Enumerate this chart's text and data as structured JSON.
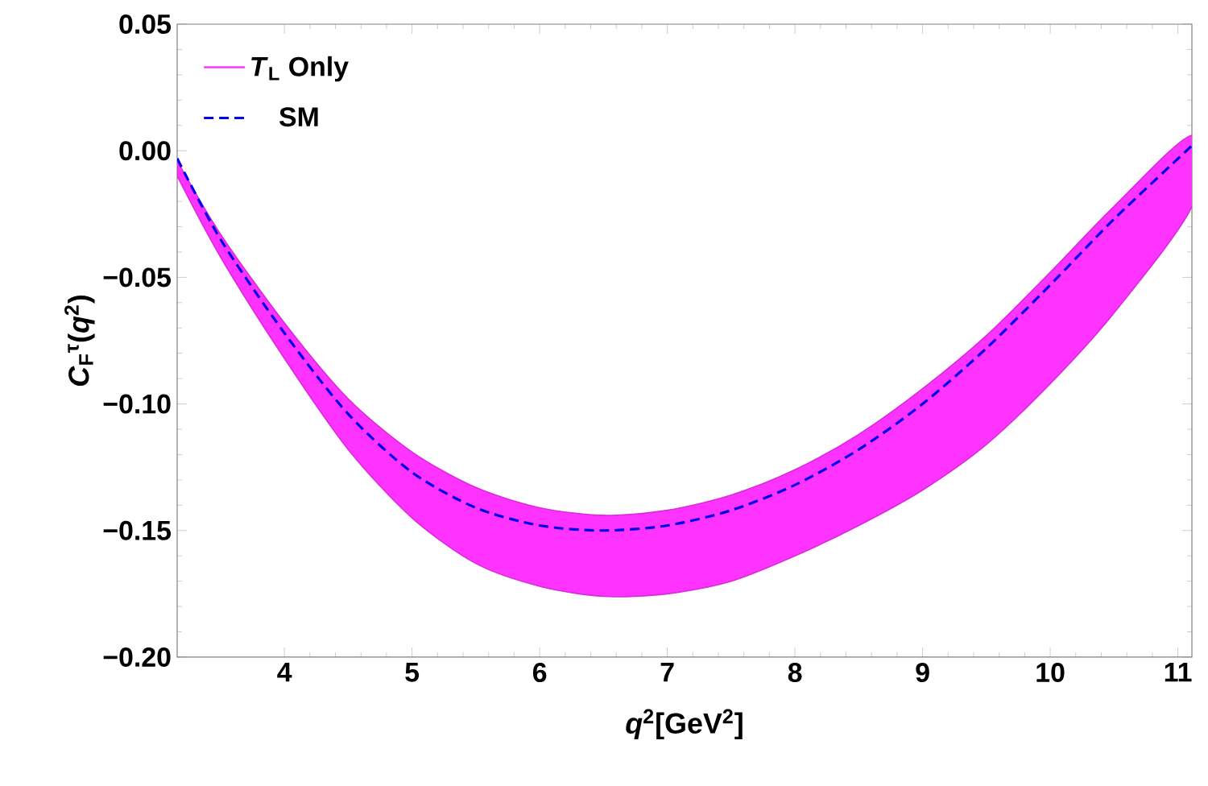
{
  "chart_data": {
    "type": "line",
    "xlabel": "*q*$^{2}$[GeV$^{2}$]",
    "ylabel": "*C*$_{F}$$^{τ}$(*q*$^{2}$)",
    "x": [
      3.16,
      3.5,
      4,
      4.5,
      5,
      5.5,
      6,
      6.5,
      7,
      7.5,
      8,
      8.5,
      9,
      9.5,
      10,
      10.5,
      11.11
    ],
    "series": [
      {
        "name": "*T*$_{L}$ Only",
        "type": "area",
        "color": "#ff33ff",
        "values": [
          null,
          null,
          null,
          null,
          null,
          null,
          null,
          null,
          null,
          null,
          null,
          null,
          null,
          null,
          null,
          null,
          null
        ],
        "upper": [
          -0.004,
          -0.033,
          -0.068,
          -0.098,
          -0.119,
          -0.133,
          -0.141,
          -0.144,
          -0.142,
          -0.136,
          -0.126,
          -0.112,
          -0.094,
          -0.073,
          -0.048,
          -0.022,
          0.006
        ],
        "lower": [
          -0.01,
          -0.042,
          -0.082,
          -0.118,
          -0.145,
          -0.163,
          -0.172,
          -0.176,
          -0.175,
          -0.17,
          -0.16,
          -0.148,
          -0.134,
          -0.116,
          -0.092,
          -0.064,
          -0.022
        ]
      },
      {
        "name": "SM",
        "color": "#0000ee",
        "line_style": "dashed",
        "values": [
          -0.003,
          -0.035,
          -0.072,
          -0.104,
          -0.127,
          -0.141,
          -0.148,
          -0.15,
          -0.148,
          -0.142,
          -0.132,
          -0.118,
          -0.1,
          -0.078,
          -0.053,
          -0.027,
          0.002
        ]
      }
    ],
    "xlim": [
      3.16,
      11.11
    ],
    "ylim": [
      -0.2,
      0.05
    ],
    "xticks": [
      4,
      5,
      6,
      7,
      8,
      9,
      10,
      11
    ],
    "yticks": [
      {
        "value": -0.2,
        "label": "−0.20"
      },
      {
        "value": -0.15,
        "label": "−0.15"
      },
      {
        "value": -0.1,
        "label": "−0.10"
      },
      {
        "value": -0.05,
        "label": "−0.05"
      },
      {
        "value": 0,
        "label": "0.00"
      },
      {
        "value": 0.05,
        "label": "0.05"
      }
    ],
    "legend": "top left",
    "grid": false,
    "marker": "none"
  }
}
